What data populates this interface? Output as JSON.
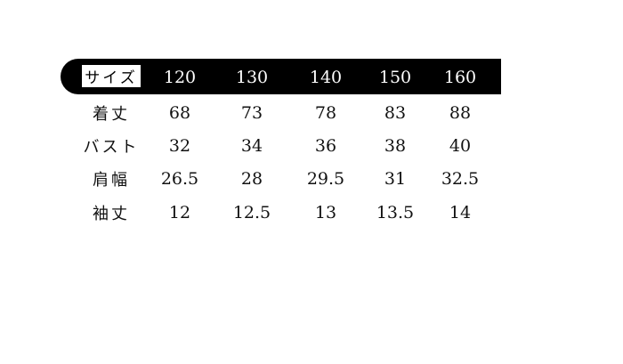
{
  "table": {
    "header_label": "サイズ",
    "sizes": [
      "120",
      "130",
      "140",
      "150",
      "160"
    ],
    "rows": [
      {
        "label": "着丈",
        "values": [
          "68",
          "73",
          "78",
          "83",
          "88"
        ]
      },
      {
        "label": "バスト",
        "values": [
          "32",
          "34",
          "36",
          "38",
          "40"
        ]
      },
      {
        "label": "肩幅",
        "values": [
          "26.5",
          "28",
          "29.5",
          "31",
          "32.5"
        ]
      },
      {
        "label": "袖丈",
        "values": [
          "12",
          "12.5",
          "13",
          "13.5",
          "14"
        ]
      }
    ]
  },
  "colors": {
    "header_bg": "#000000",
    "header_text": "#ffffff",
    "text": "#111111"
  }
}
